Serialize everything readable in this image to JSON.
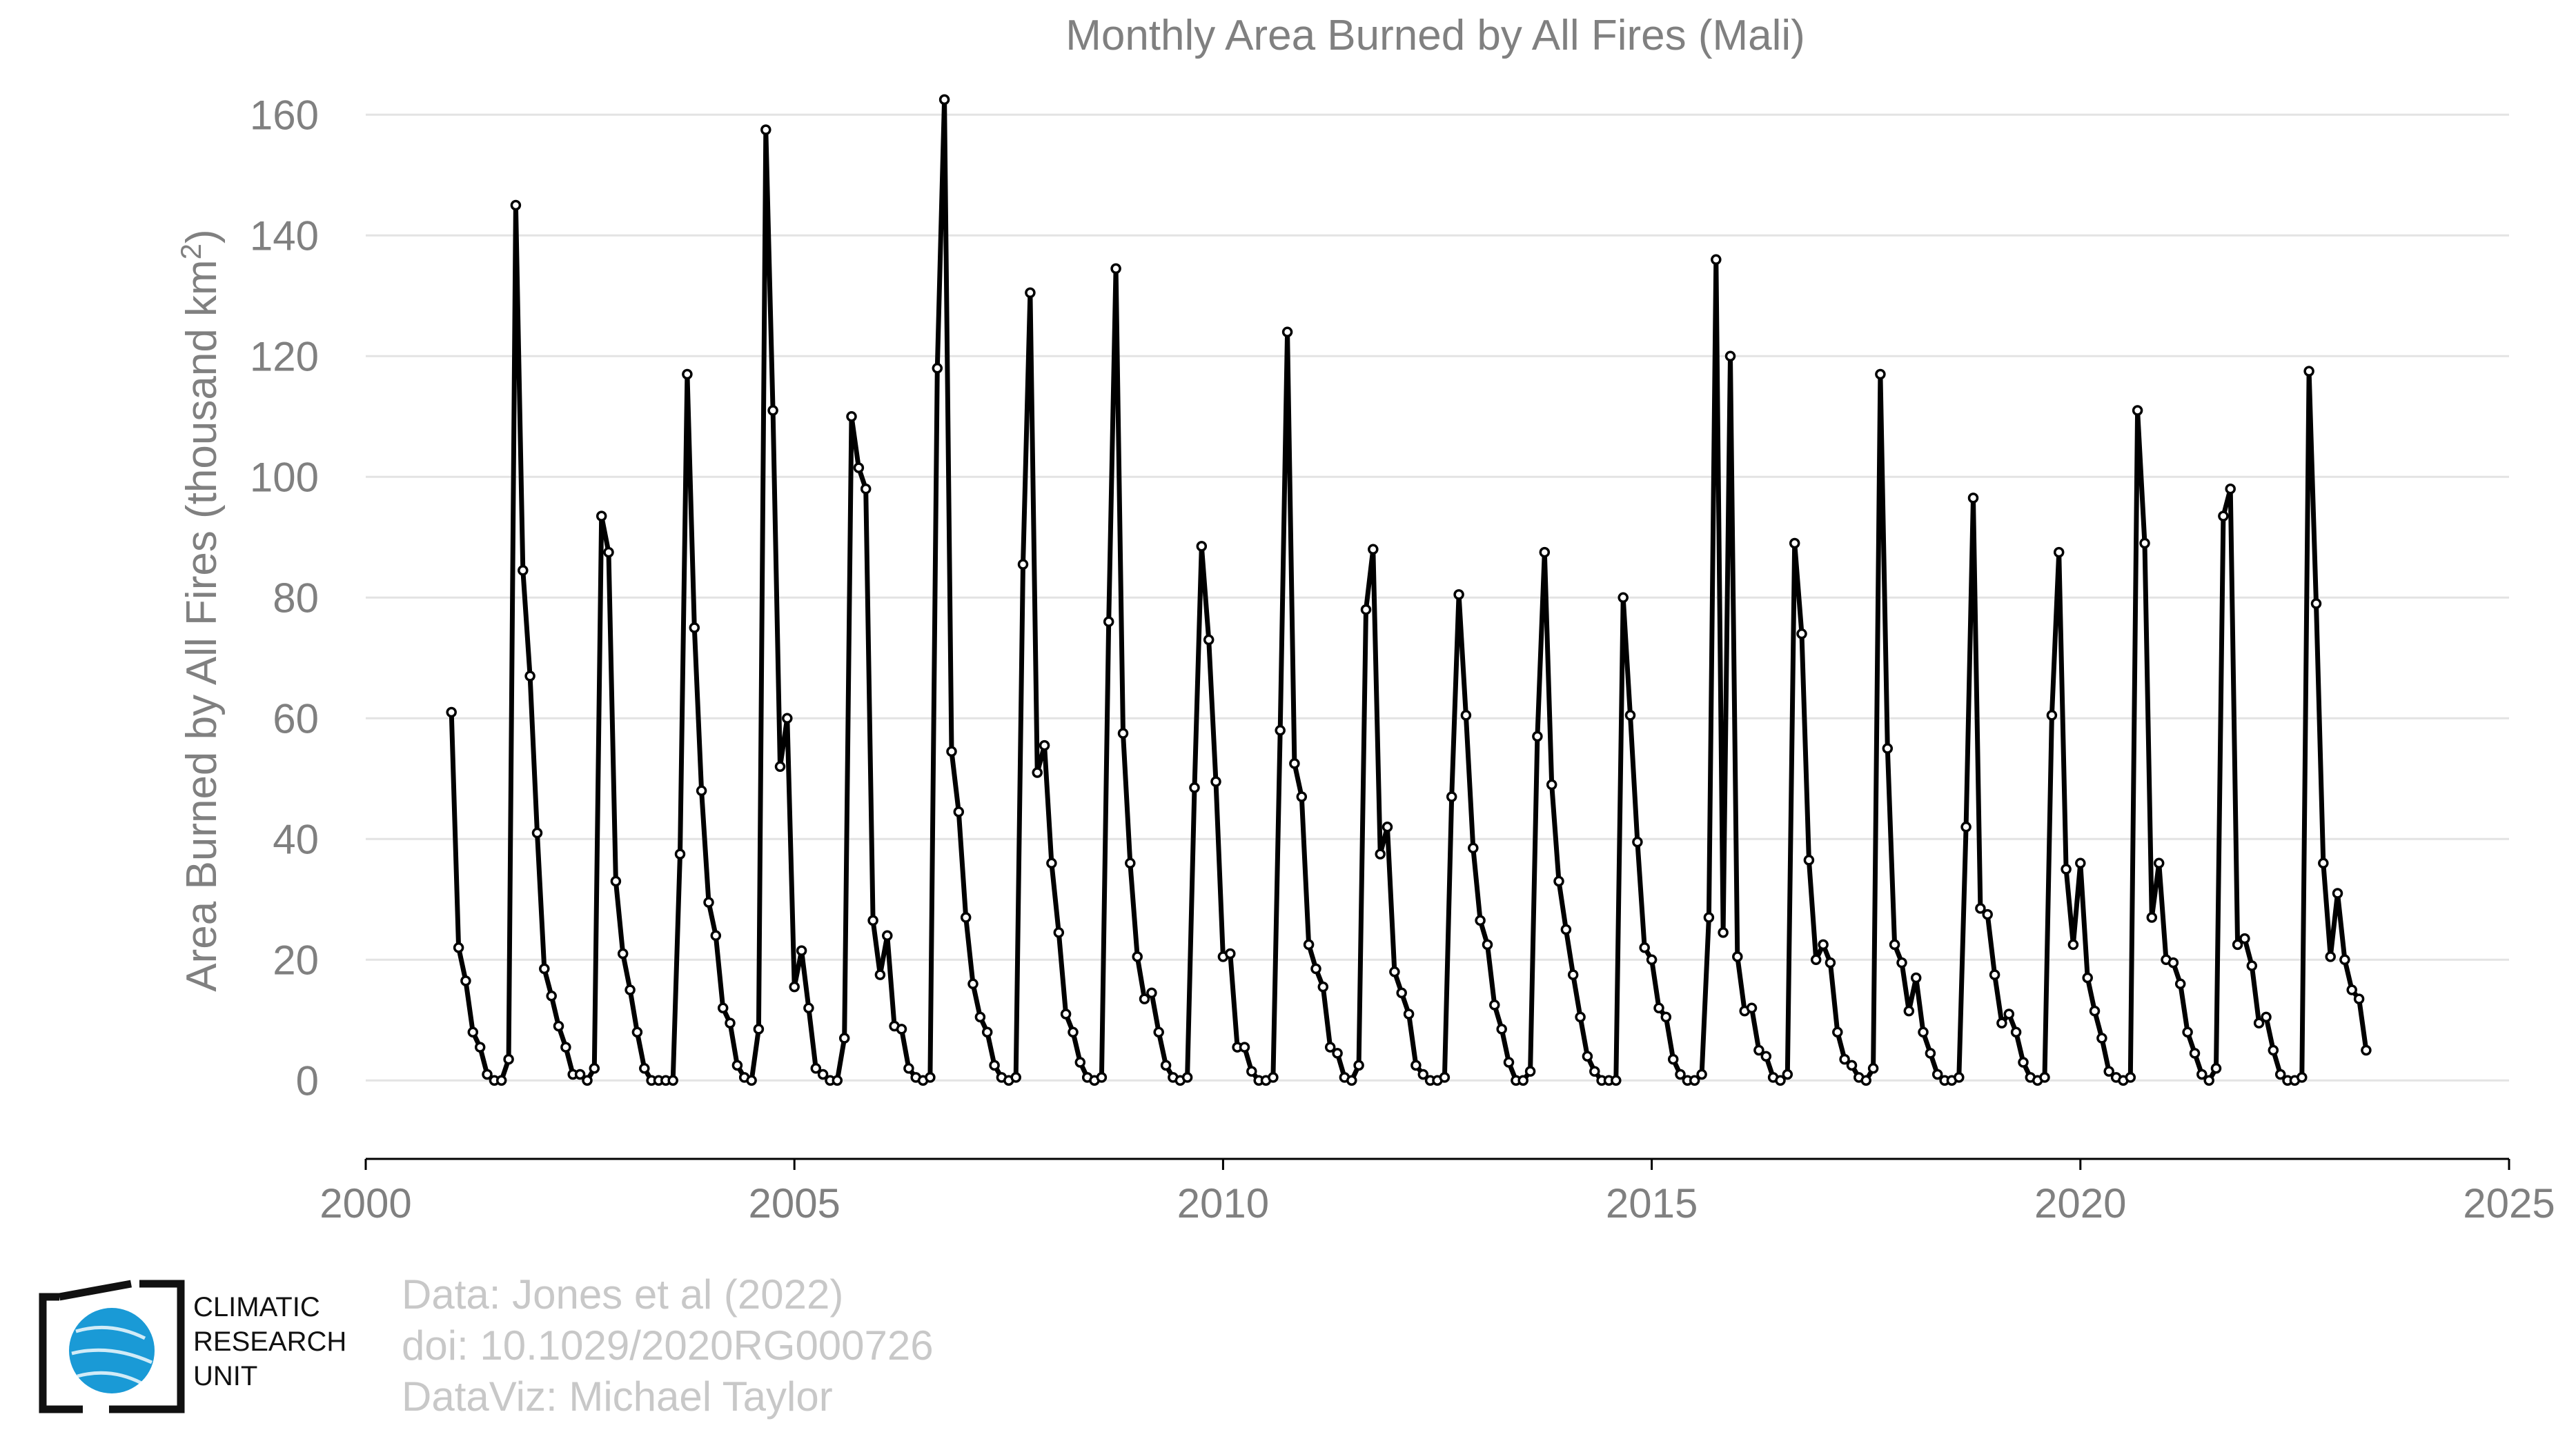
{
  "chart_data": {
    "type": "line",
    "title": "Monthly Area Burned by All Fires (Mali)",
    "ylabel": "Area Burned by All Fires (thousand km",
    "ylabel_sup": "2",
    "ylabel_end": ")",
    "xlim": [
      2000,
      2025
    ],
    "ylim": [
      -13,
      163
    ],
    "xticks": [
      2000,
      2005,
      2010,
      2015,
      2020,
      2025
    ],
    "yticks": [
      0,
      20,
      40,
      60,
      80,
      100,
      120,
      140,
      160
    ],
    "grid": "horizontal",
    "colors": {
      "line": "#000000",
      "marker_fill": "#ffffff",
      "grid": "#e3e3e3",
      "text": "#808080"
    },
    "x_start": 2001.0,
    "x_step_months": 1,
    "values": [
      61,
      22,
      16.5,
      8,
      5.5,
      1,
      0,
      0,
      3.5,
      145,
      84.5,
      67,
      41,
      18.5,
      14,
      9,
      5.5,
      1,
      1,
      0,
      2,
      93.5,
      87.5,
      33,
      21,
      15,
      8,
      2,
      0,
      0,
      0,
      0,
      37.5,
      117,
      75,
      48,
      29.5,
      24,
      12,
      9.5,
      2.5,
      0.5,
      0,
      8.5,
      157.5,
      111,
      52,
      60,
      15.5,
      21.5,
      12,
      2,
      1,
      0,
      0,
      7,
      110,
      101.5,
      98,
      26.5,
      17.5,
      24,
      9,
      8.5,
      2,
      0.5,
      0,
      0.5,
      118,
      162.5,
      54.5,
      44.5,
      27,
      16,
      10.5,
      8,
      2.5,
      0.5,
      0,
      0.5,
      85.5,
      130.5,
      51,
      55.5,
      36,
      24.5,
      11,
      8,
      3,
      0.5,
      0,
      0.5,
      76,
      134.5,
      57.5,
      36,
      20.5,
      13.5,
      14.5,
      8,
      2.5,
      0.5,
      0,
      0.5,
      48.5,
      88.5,
      73,
      49.5,
      20.5,
      21,
      5.5,
      5.5,
      1.5,
      0,
      0,
      0.5,
      58,
      124,
      52.5,
      47,
      22.5,
      18.5,
      15.5,
      5.5,
      4.5,
      0.5,
      0,
      2.5,
      78,
      88,
      37.5,
      42,
      18,
      14.5,
      11,
      2.5,
      1,
      0,
      0,
      0.5,
      47,
      80.5,
      60.5,
      38.5,
      26.5,
      22.5,
      12.5,
      8.5,
      3,
      0,
      0,
      1.5,
      57,
      87.5,
      49,
      33,
      25,
      17.5,
      10.5,
      4,
      1.5,
      0,
      0,
      0,
      80,
      60.5,
      39.5,
      22,
      20,
      12,
      10.5,
      3.5,
      1,
      0,
      0,
      1,
      27,
      136,
      24.5,
      120,
      20.5,
      11.5,
      12,
      5,
      4,
      0.5,
      0,
      1,
      89,
      74,
      36.5,
      20,
      22.5,
      19.5,
      8,
      3.5,
      2.5,
      0.5,
      0,
      2,
      117,
      55,
      22.5,
      19.5,
      11.5,
      17,
      8,
      4.5,
      1,
      0,
      0,
      0.5,
      42,
      96.5,
      28.5,
      27.5,
      17.5,
      9.5,
      11,
      8,
      3,
      0.5,
      0,
      0.5,
      60.5,
      87.5,
      35,
      22.5,
      36,
      17,
      11.5,
      7,
      1.5,
      0.5,
      0,
      0.5,
      111,
      89,
      27,
      36,
      20,
      19.5,
      16,
      8,
      4.5,
      1,
      0,
      2,
      93.5,
      98,
      22.5,
      23.5,
      19,
      9.5,
      10.5,
      5,
      1,
      0,
      0,
      0.5,
      117.5,
      79,
      36,
      20.5,
      31,
      20,
      15,
      13.5,
      5
    ]
  },
  "credits": {
    "line1": "Data: Jones et al (2022)",
    "line2": "doi: 10.1029/2020RG000726",
    "line3": "DataViz: Michael Taylor"
  },
  "logo": {
    "line1": "CLIMATIC",
    "line2": "RESEARCH",
    "line3": "UNIT",
    "globe_color": "#1a9ad6"
  }
}
